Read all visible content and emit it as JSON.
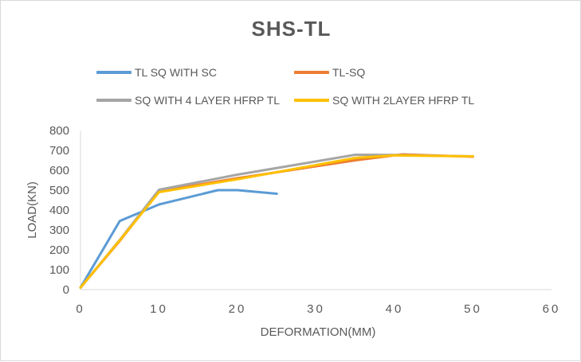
{
  "chart_data": {
    "type": "line",
    "title": "SHS-TL",
    "xlabel": "DEFORMATION(MM)",
    "ylabel": "LOAD(KN)",
    "xlim": [
      0,
      60
    ],
    "ylim": [
      0,
      800
    ],
    "xticks": [
      0,
      10,
      20,
      30,
      40,
      50,
      60
    ],
    "yticks": [
      0,
      100,
      200,
      300,
      400,
      500,
      600,
      700,
      800
    ],
    "grid": false,
    "legend_position": "top",
    "series": [
      {
        "name": "TL SQ WITH SC",
        "color": "#5b9bd5",
        "points": [
          [
            0,
            10
          ],
          [
            5,
            345
          ],
          [
            10,
            428
          ],
          [
            17.5,
            500
          ],
          [
            20,
            500
          ],
          [
            25,
            482
          ]
        ]
      },
      {
        "name": "TL-SQ",
        "color": "#ed7d31",
        "points": [
          [
            0,
            10
          ],
          [
            5,
            245
          ],
          [
            10,
            495
          ],
          [
            20,
            560
          ],
          [
            35,
            650
          ],
          [
            41,
            680
          ],
          [
            50,
            668
          ]
        ]
      },
      {
        "name": "SQ WITH 4 LAYER HFRP TL",
        "color": "#a5a5a5",
        "points": [
          [
            0,
            10
          ],
          [
            5,
            250
          ],
          [
            10,
            502
          ],
          [
            20,
            578
          ],
          [
            35,
            678
          ],
          [
            40,
            677
          ],
          [
            50,
            670
          ]
        ]
      },
      {
        "name": "SQ WITH 2LAYER HFRP TL",
        "color": "#ffc000",
        "points": [
          [
            0,
            10
          ],
          [
            5,
            248
          ],
          [
            10,
            490
          ],
          [
            20,
            555
          ],
          [
            35,
            662
          ],
          [
            40,
            675
          ],
          [
            50,
            670
          ]
        ]
      }
    ]
  }
}
